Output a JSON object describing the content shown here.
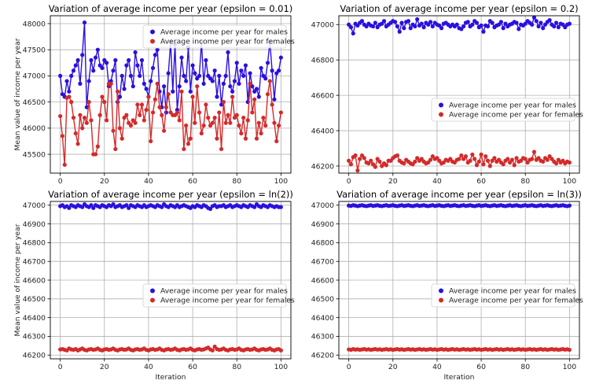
{
  "chart_data": [
    {
      "type": "line",
      "title": "Variation of average income per year (epsilon = 0.01)",
      "xlabel": "",
      "ylabel": "Mean value of income per year",
      "xlim": [
        -4.5,
        104.5
      ],
      "ylim": [
        45140,
        48150
      ],
      "xticks": [
        0,
        20,
        40,
        60,
        80,
        100
      ],
      "yticks": [
        45500,
        46000,
        46500,
        47000,
        47500,
        48000
      ],
      "grid": true,
      "legend_position": "upper-right",
      "series": [
        {
          "name": "Average income per year for males",
          "color": "#2a10e0",
          "values": [
            47000,
            46650,
            46600,
            46900,
            46700,
            47000,
            47100,
            47200,
            47300,
            46850,
            47400,
            48020,
            46400,
            46900,
            47300,
            47100,
            47350,
            47500,
            47200,
            47150,
            47300,
            47250,
            46800,
            46900,
            47100,
            47300,
            46500,
            46600,
            47000,
            46750,
            47200,
            47300,
            47000,
            46800,
            47450,
            47200,
            47000,
            47300,
            46850,
            46750,
            46600,
            46900,
            47150,
            47400,
            47500,
            46700,
            46400,
            46800,
            46300,
            47050,
            47650,
            46700,
            47600,
            46350,
            46800,
            47350,
            47000,
            46900,
            47550,
            46700,
            47200,
            47050,
            46950,
            47000,
            47650,
            46850,
            47300,
            47000,
            46950,
            46900,
            47100,
            46600,
            47000,
            46450,
            46850,
            47000,
            47450,
            46800,
            46700,
            46900,
            47250,
            46850,
            47100,
            47000,
            47200,
            46500,
            47050,
            46800,
            46700,
            46750,
            46600,
            47150,
            47000,
            46950,
            47250,
            47650,
            47100,
            46550,
            47050,
            47100,
            47350
          ]
        },
        {
          "name": "Average income per year for females",
          "color": "#d42a2a",
          "values": [
            46230,
            45850,
            45300,
            46580,
            46600,
            46500,
            46200,
            45900,
            45700,
            46250,
            46000,
            46200,
            46100,
            46500,
            46150,
            45500,
            45500,
            45650,
            46250,
            46600,
            46500,
            46150,
            46850,
            46850,
            45950,
            45600,
            46700,
            46000,
            45800,
            46200,
            46250,
            46100,
            46050,
            46150,
            46100,
            46450,
            46250,
            46450,
            46150,
            46350,
            46600,
            45750,
            46300,
            46550,
            46850,
            46400,
            46250,
            45950,
            46400,
            46650,
            46300,
            46250,
            46250,
            46300,
            46150,
            46700,
            45600,
            46050,
            45700,
            45800,
            46600,
            46100,
            46800,
            46300,
            45900,
            46050,
            46450,
            46200,
            46050,
            46100,
            46200,
            45800,
            46300,
            45600,
            46500,
            46100,
            46250,
            46100,
            46600,
            46200,
            46250,
            46050,
            45900,
            46200,
            45800,
            46150,
            46850,
            46300,
            46550,
            45800,
            46100,
            45900,
            46200,
            46050,
            46650,
            46900,
            46450,
            46100,
            45750,
            46050,
            46300
          ]
        }
      ]
    },
    {
      "type": "line",
      "title": "Variation of average income per year (epsilon = 0.2)",
      "xlabel": "",
      "ylabel": "",
      "xlim": [
        -4.5,
        104.5
      ],
      "ylim": [
        46160,
        47050
      ],
      "xticks": [
        0,
        20,
        40,
        60,
        80,
        100
      ],
      "yticks": [
        46200,
        46400,
        46600,
        46800,
        47000
      ],
      "grid": true,
      "legend_position": "center-right",
      "series": [
        {
          "name": "Average income per year for males",
          "color": "#2a10e0",
          "values": [
            47000,
            46985,
            46950,
            47005,
            46995,
            47010,
            47020,
            47000,
            46990,
            47005,
            46995,
            46990,
            47010,
            46985,
            47000,
            47005,
            47020,
            46990,
            47000,
            47010,
            47020,
            47015,
            46990,
            46960,
            47010,
            46980,
            47015,
            47020,
            46980,
            47000,
            46990,
            47030,
            46995,
            47005,
            46985,
            47010,
            47000,
            47015,
            46990,
            47010,
            47000,
            46995,
            46980,
            47005,
            47010,
            47000,
            46990,
            47000,
            46990,
            47000,
            46980,
            46975,
            46990,
            47010,
            47015,
            46990,
            47000,
            47020,
            47010,
            46985,
            46995,
            46960,
            46995,
            46990,
            47020,
            47010,
            46985,
            46995,
            47000,
            47015,
            46980,
            47005,
            46990,
            47000,
            47005,
            47015,
            47010,
            46975,
            47000,
            46995,
            47005,
            47020,
            47010,
            47000,
            47040,
            47020,
            46990,
            47010,
            46980,
            47000,
            47015,
            47025,
            47000,
            46990,
            47010,
            46985,
            47005,
            47000,
            46985,
            47000,
            47005
          ]
        },
        {
          "name": "Average income per year for females",
          "color": "#d42a2a",
          "values": [
            46230,
            46210,
            46250,
            46260,
            46175,
            46240,
            46260,
            46245,
            46220,
            46215,
            46230,
            46210,
            46195,
            46240,
            46225,
            46200,
            46215,
            46205,
            46230,
            46230,
            46245,
            46255,
            46260,
            46230,
            46220,
            46215,
            46235,
            46225,
            46215,
            46210,
            46225,
            46245,
            46230,
            46240,
            46225,
            46215,
            46220,
            46235,
            46255,
            46240,
            46245,
            46230,
            46215,
            46220,
            46235,
            46230,
            46240,
            46225,
            46220,
            46235,
            46240,
            46260,
            46240,
            46255,
            46220,
            46230,
            46265,
            46240,
            46205,
            46225,
            46265,
            46210,
            46255,
            46230,
            46200,
            46230,
            46245,
            46225,
            46235,
            46220,
            46210,
            46230,
            46240,
            46220,
            46235,
            46205,
            46245,
            46225,
            46230,
            46245,
            46240,
            46220,
            46235,
            46240,
            46280,
            46235,
            46245,
            46230,
            46225,
            46245,
            46235,
            46255,
            46240,
            46225,
            46215,
            46235,
            46220,
            46230,
            46215,
            46225,
            46220
          ]
        }
      ]
    },
    {
      "type": "line",
      "title": "Variation of average income per year (epsilon = ln(2))",
      "xlabel": "Iteration",
      "ylabel": "Mean value of income per year",
      "xlim": [
        -4.5,
        104.5
      ],
      "ylim": [
        46180,
        47020
      ],
      "xticks": [
        0,
        20,
        40,
        60,
        80,
        100
      ],
      "yticks": [
        46200,
        46300,
        46400,
        46500,
        46600,
        46700,
        46800,
        46900,
        47000
      ],
      "grid": true,
      "legend_position": "center-right",
      "series": [
        {
          "name": "Average income per year for males",
          "color": "#2a10e0",
          "values": [
            46995,
            47000,
            46990,
            46995,
            46985,
            47000,
            46995,
            46990,
            47000,
            46995,
            46990,
            47005,
            46995,
            46990,
            47000,
            46985,
            47000,
            46995,
            46990,
            47000,
            46995,
            46990,
            47000,
            46995,
            47005,
            46990,
            46995,
            47000,
            46990,
            46995,
            47000,
            46985,
            47000,
            46995,
            46990,
            47000,
            46995,
            46990,
            47000,
            46990,
            46995,
            47000,
            46995,
            46990,
            47000,
            46995,
            46990,
            47005,
            46995,
            46990,
            47000,
            46995,
            46990,
            47000,
            46990,
            46995,
            47000,
            46995,
            46990,
            46985,
            46995,
            46990,
            47000,
            46995,
            46990,
            47000,
            46995,
            46985,
            46980,
            46995,
            47000,
            46990,
            46995,
            46995,
            47000,
            46990,
            46995,
            47000,
            46990,
            46995,
            47000,
            46995,
            46990,
            47000,
            46995,
            46990,
            47000,
            46995,
            46990,
            47005,
            46995,
            46990,
            47000,
            46995,
            46990,
            47000,
            46995,
            46990,
            46995,
            46990,
            46990
          ]
        },
        {
          "name": "Average income per year for females",
          "color": "#d42a2a",
          "values": [
            46230,
            46232,
            46228,
            46225,
            46235,
            46230,
            46228,
            46232,
            46225,
            46230,
            46235,
            46228,
            46225,
            46230,
            46232,
            46228,
            46230,
            46235,
            46228,
            46225,
            46230,
            46232,
            46228,
            46230,
            46235,
            46228,
            46225,
            46230,
            46232,
            46228,
            46230,
            46235,
            46228,
            46225,
            46230,
            46232,
            46228,
            46230,
            46235,
            46228,
            46225,
            46230,
            46232,
            46228,
            46230,
            46235,
            46228,
            46225,
            46230,
            46232,
            46228,
            46230,
            46235,
            46228,
            46225,
            46230,
            46232,
            46228,
            46230,
            46235,
            46228,
            46225,
            46230,
            46232,
            46228,
            46230,
            46235,
            46240,
            46230,
            46225,
            46245,
            46232,
            46228,
            46230,
            46235,
            46228,
            46225,
            46230,
            46232,
            46228,
            46230,
            46235,
            46228,
            46225,
            46230,
            46232,
            46228,
            46230,
            46235,
            46228,
            46225,
            46230,
            46232,
            46228,
            46230,
            46235,
            46228,
            46225,
            46230,
            46232,
            46225
          ]
        }
      ]
    },
    {
      "type": "line",
      "title": "Variation of average income per year (epsilon = ln(3))",
      "xlabel": "Iteration",
      "ylabel": "",
      "xlim": [
        -4.5,
        104.5
      ],
      "ylim": [
        46180,
        47020
      ],
      "xticks": [
        0,
        20,
        40,
        60,
        80,
        100
      ],
      "yticks": [
        46200,
        46300,
        46400,
        46500,
        46600,
        46700,
        46800,
        46900,
        47000
      ],
      "grid": true,
      "legend_position": "center-right",
      "series": [
        {
          "name": "Average income per year for males",
          "color": "#2a10e0",
          "values": [
            46998,
            46996,
            47000,
            46998,
            46995,
            46998,
            47000,
            46997,
            46995,
            46998,
            47000,
            46996,
            46998,
            47000,
            46997,
            46995,
            46998,
            47000,
            46996,
            46998,
            47000,
            46997,
            46995,
            46998,
            47000,
            46996,
            46998,
            47000,
            46997,
            46995,
            46998,
            47000,
            46996,
            46998,
            47000,
            46997,
            46995,
            46998,
            47000,
            46996,
            46998,
            47000,
            46997,
            46995,
            46998,
            47000,
            46996,
            46998,
            47000,
            46997,
            46995,
            46998,
            47000,
            46996,
            46998,
            47000,
            46997,
            46995,
            46998,
            47000,
            46996,
            46998,
            47000,
            46997,
            46995,
            46998,
            47000,
            46996,
            46998,
            47000,
            46997,
            46995,
            46998,
            47000,
            46996,
            46998,
            47000,
            46997,
            46995,
            46998,
            47000,
            46996,
            46998,
            47000,
            46997,
            46995,
            46998,
            47000,
            46996,
            46998,
            47000,
            46997,
            46995,
            46998,
            47000,
            46996,
            46998,
            47000,
            46997,
            46995,
            46998
          ]
        },
        {
          "name": "Average income per year for females",
          "color": "#d42a2a",
          "values": [
            46230,
            46228,
            46232,
            46229,
            46231,
            46228,
            46230,
            46232,
            46229,
            46231,
            46228,
            46230,
            46232,
            46229,
            46231,
            46228,
            46230,
            46232,
            46229,
            46231,
            46228,
            46230,
            46232,
            46229,
            46231,
            46228,
            46230,
            46232,
            46229,
            46231,
            46228,
            46230,
            46232,
            46229,
            46231,
            46228,
            46230,
            46232,
            46229,
            46231,
            46228,
            46230,
            46232,
            46229,
            46231,
            46228,
            46230,
            46232,
            46229,
            46231,
            46228,
            46230,
            46232,
            46229,
            46231,
            46228,
            46230,
            46232,
            46229,
            46231,
            46228,
            46230,
            46232,
            46229,
            46231,
            46228,
            46230,
            46232,
            46229,
            46231,
            46228,
            46230,
            46232,
            46229,
            46231,
            46228,
            46230,
            46232,
            46229,
            46231,
            46228,
            46230,
            46232,
            46229,
            46231,
            46228,
            46230,
            46232,
            46229,
            46231,
            46228,
            46230,
            46232,
            46229,
            46231,
            46228,
            46230,
            46232,
            46229,
            46231,
            46228
          ]
        }
      ]
    }
  ]
}
